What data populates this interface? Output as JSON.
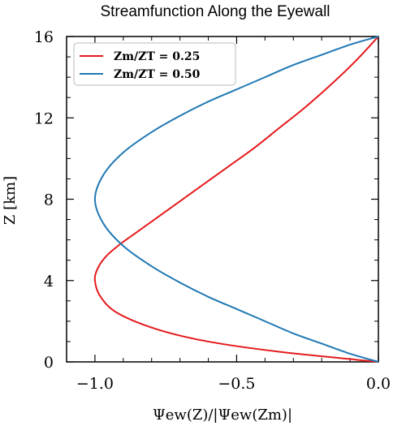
{
  "chart_data": {
    "type": "line",
    "title": "Streamfunction Along the Eyewall",
    "xlabel": "Ψew(Z)/|Ψew(Zm)|",
    "ylabel": "Z [km]",
    "xlim": [
      -1.1,
      0.0
    ],
    "ylim": [
      0,
      16
    ],
    "xticks": [
      -1.0,
      -0.5,
      0.0
    ],
    "xtick_labels": [
      "−1.0",
      "−0.5",
      "0.0"
    ],
    "yticks": [
      0,
      4,
      8,
      12,
      16
    ],
    "ytick_labels": [
      "0",
      "4",
      "8",
      "12",
      "16"
    ],
    "legend_position": "top-left",
    "grid": false,
    "series": [
      {
        "name": "Zm/ZT = 0.25",
        "color": "#e41a1c",
        "x": [
          0.0,
          -0.35,
          -0.6,
          -0.78,
          -0.92,
          -0.98,
          -1.0,
          -0.99,
          -0.96,
          -0.91,
          -0.85,
          -0.78,
          -0.7,
          -0.62,
          -0.53,
          -0.44,
          -0.35,
          -0.26,
          -0.17,
          -0.08,
          0.0
        ],
        "y": [
          0.0,
          0.5,
          1.0,
          1.6,
          2.4,
          3.2,
          4.0,
          4.6,
          5.2,
          5.8,
          6.4,
          7.1,
          7.9,
          8.7,
          9.6,
          10.5,
          11.5,
          12.5,
          13.6,
          14.8,
          16.0
        ]
      },
      {
        "name": "Zm/ZT = 0.50",
        "color": "#1f78b4",
        "x": [
          0.0,
          -0.1,
          -0.2,
          -0.3,
          -0.4,
          -0.5,
          -0.6,
          -0.7,
          -0.8,
          -0.9,
          -0.97,
          -1.0,
          -0.97,
          -0.9,
          -0.8,
          -0.7,
          -0.6,
          -0.5,
          -0.4,
          -0.3,
          -0.2,
          -0.1,
          0.0
        ],
        "y": [
          0.0,
          0.4,
          0.9,
          1.4,
          2.0,
          2.6,
          3.2,
          3.9,
          4.7,
          5.7,
          6.8,
          8.0,
          9.2,
          10.3,
          11.3,
          12.1,
          12.8,
          13.4,
          14.0,
          14.6,
          15.1,
          15.6,
          16.0
        ]
      }
    ]
  }
}
